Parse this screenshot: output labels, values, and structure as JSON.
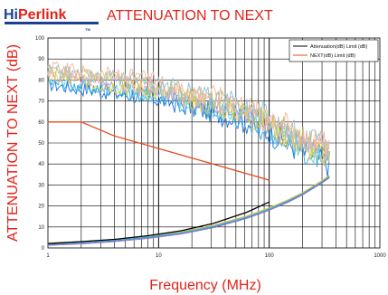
{
  "logo": {
    "part_a": "Hi",
    "part_b": "Perlink",
    "tagline": "TM"
  },
  "chart_data": {
    "type": "line",
    "title": "ATTENUATION TO NEXT",
    "xlabel": "Frequency (MHz)",
    "ylabel": "ATTENUATION TO NEXT (dB)",
    "x_scale": "log",
    "xlim": [
      1,
      1000
    ],
    "ylim": [
      0,
      100
    ],
    "grid": true,
    "legend_position": "top-right",
    "x_ticks": [
      "1",
      "10",
      "100",
      "1000"
    ],
    "y_ticks": [
      "0",
      "10",
      "20",
      "30",
      "40",
      "50",
      "60",
      "70",
      "80",
      "90",
      "100"
    ],
    "limit_series": [
      {
        "name": "Attenuation(dB) Limit (dB)",
        "color": "#000000",
        "x": [
          1,
          2,
          4,
          8,
          16,
          31.25,
          62.5,
          100
        ],
        "y": [
          2.1,
          3.0,
          4.1,
          5.8,
          8.2,
          11.7,
          17.0,
          21.9
        ]
      },
      {
        "name": "NEXT(dB) Limit (dB)",
        "color": "#e8481c",
        "x": [
          1,
          2,
          4,
          8,
          16,
          31.25,
          62.5,
          100
        ],
        "y": [
          60.0,
          60.0,
          53.3,
          48.8,
          44.3,
          39.9,
          35.4,
          32.3
        ]
      }
    ],
    "measured_attenuation": {
      "x": [
        1,
        2,
        4,
        8,
        16,
        31.25,
        62.5,
        100,
        150,
        200,
        250,
        300,
        350
      ],
      "y": [
        1.8,
        2.5,
        3.6,
        5.1,
        7.2,
        10.2,
        14.6,
        18.5,
        22.5,
        25.8,
        28.9,
        31.5,
        34.0
      ]
    },
    "measured_next": {
      "x": [
        1,
        2,
        4,
        10,
        20,
        50,
        100,
        200,
        350
      ],
      "y": [
        82,
        80,
        78,
        75,
        71,
        66,
        59,
        50,
        44
      ],
      "spread": 10,
      "colors": [
        "#1f6fd6",
        "#2aa8e0",
        "#63c8f0",
        "#f2d13d",
        "#e8a0c8",
        "#c6c26a",
        "#8cc4d8",
        "#f4b89a"
      ]
    }
  }
}
